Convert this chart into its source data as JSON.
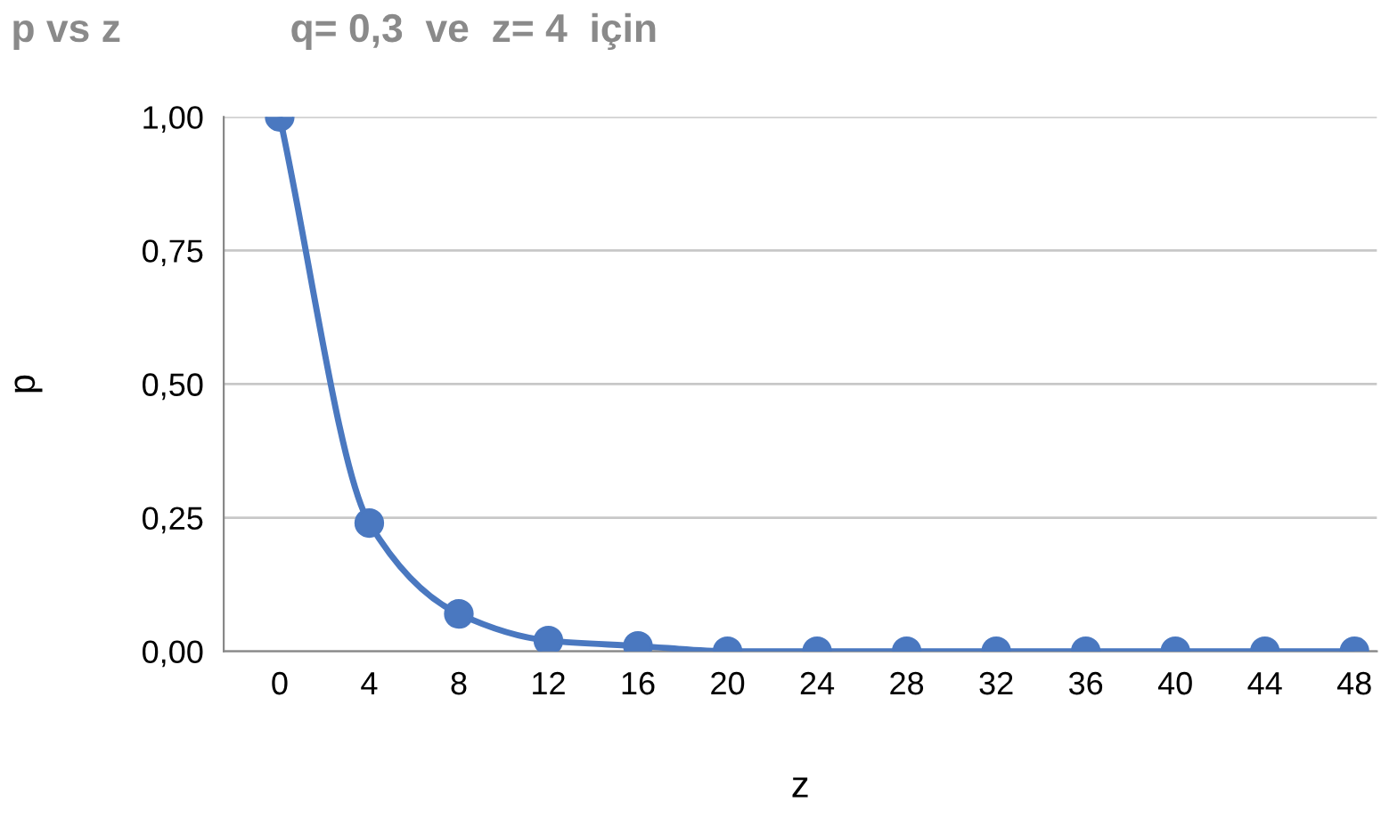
{
  "chart_data": {
    "type": "line",
    "title": "p vs z",
    "subtitle": "q= 0,3  ve  z= 4  için",
    "xlabel": "z",
    "ylabel": "p",
    "x": [
      0,
      4,
      8,
      12,
      16,
      20,
      24,
      28,
      32,
      36,
      40,
      44,
      48
    ],
    "series": [
      {
        "color": "#4a78c0",
        "values": [
          1.0,
          0.24,
          0.07,
          0.02,
          0.01,
          0,
          0,
          0,
          0,
          0,
          0,
          0,
          0
        ]
      }
    ],
    "xlim": [
      -2.5,
      49
    ],
    "xticks": [
      0,
      4,
      8,
      12,
      16,
      20,
      24,
      28,
      32,
      36,
      40,
      44,
      48
    ],
    "ylim": [
      0,
      1
    ],
    "yticks": [
      {
        "value": 0,
        "label": "0,00"
      },
      {
        "value": 0.25,
        "label": "0,25"
      },
      {
        "value": 0.5,
        "label": "0,50"
      },
      {
        "value": 0.75,
        "label": "0,75"
      },
      {
        "value": 1,
        "label": "1,00"
      }
    ],
    "grid": "y",
    "marker": "circle",
    "line_style": "solid",
    "legend": false
  }
}
